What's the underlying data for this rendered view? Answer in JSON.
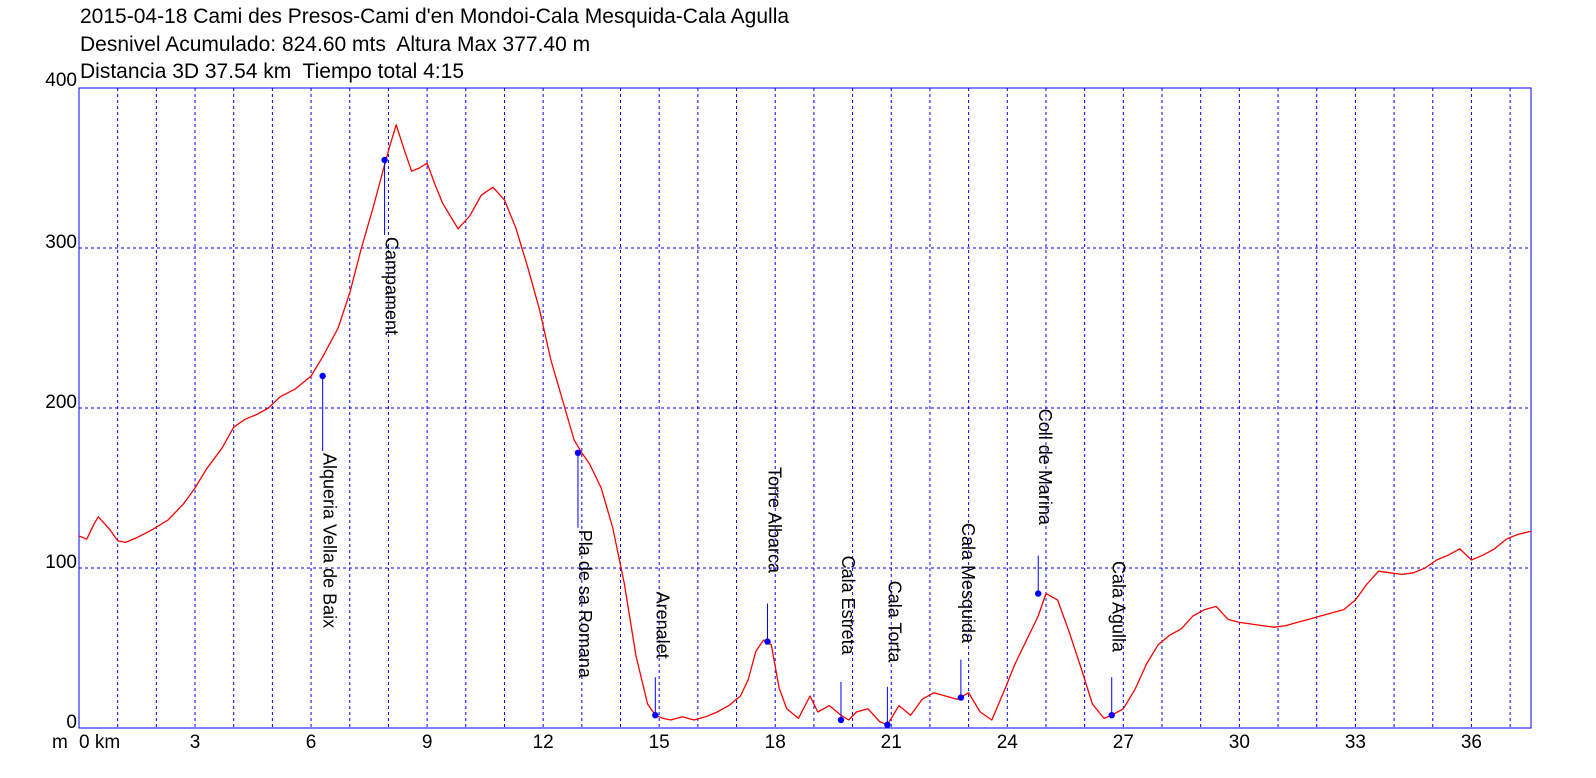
{
  "header": {
    "title": "2015-04-18 Cami des Presos-Cami d'en Mondoi-Cala Mesquida-Cala Agulla",
    "stats": "Desnivel Acumulado: 824.60 mts  Altura Max 377.40 m",
    "stats2": "Distancia 3D 37.54 km  Tiempo total 4:15"
  },
  "chart_data": {
    "type": "area",
    "title": "2015-04-18 Cami des Presos-Cami d'en Mondoi-Cala Mesquida-Cala Agulla",
    "xlabel": "km",
    "ylabel": "m",
    "x_unit_label": "0 km",
    "xlim": [
      0,
      37.54
    ],
    "ylim": [
      0,
      400
    ],
    "x_ticks": [
      0,
      3,
      6,
      9,
      12,
      15,
      18,
      21,
      24,
      27,
      30,
      33,
      36
    ],
    "y_ticks": [
      0,
      100,
      200,
      300,
      400
    ],
    "grid": true,
    "line_color": "#ff0000",
    "grid_color": "#0000ff",
    "marker_color": "#0000ff",
    "series": [
      {
        "x": [
          0,
          0.2,
          0.4,
          0.5,
          0.8,
          1.0,
          1.2,
          1.5,
          1.9,
          2.3,
          2.7,
          3.0,
          3.3,
          3.7,
          4.0,
          4.3,
          4.6,
          4.9,
          5.2,
          5.6,
          6.0,
          6.3,
          6.7,
          7.0,
          7.3,
          7.6,
          7.9,
          8.05,
          8.2,
          8.4,
          8.6,
          8.8,
          9.0,
          9.2,
          9.4,
          9.6,
          9.8,
          10.1,
          10.4,
          10.7,
          11.0,
          11.3,
          11.6,
          11.9,
          12.2,
          12.5,
          12.8,
          13.0,
          13.2,
          13.5,
          13.8,
          14.1,
          14.4,
          14.7,
          14.9,
          15.1,
          15.3,
          15.6,
          15.9,
          16.2,
          16.5,
          16.8,
          17.1,
          17.3,
          17.5,
          17.7,
          17.9,
          18.1,
          18.3,
          18.6,
          18.9,
          19.1,
          19.4,
          19.7,
          19.9,
          20.1,
          20.4,
          20.7,
          20.9,
          21.2,
          21.5,
          21.8,
          22.1,
          22.4,
          22.7,
          23.0,
          23.3,
          23.6,
          23.9,
          24.2,
          24.5,
          24.8,
          25.0,
          25.3,
          25.6,
          25.9,
          26.2,
          26.5,
          26.7,
          27.0,
          27.3,
          27.6,
          27.9,
          28.2,
          28.5,
          28.8,
          29.1,
          29.4,
          29.7,
          30.0,
          30.3,
          30.6,
          30.9,
          31.2,
          31.5,
          31.8,
          32.1,
          32.4,
          32.7,
          33.0,
          33.3,
          33.6,
          33.9,
          34.2,
          34.5,
          34.8,
          35.1,
          35.4,
          35.7,
          36.0,
          36.3,
          36.6,
          36.9,
          37.2,
          37.54
        ],
        "y": [
          120,
          118,
          128,
          132,
          124,
          117,
          116,
          119,
          124,
          130,
          140,
          150,
          162,
          175,
          188,
          193,
          196,
          200,
          207,
          212,
          220,
          232,
          250,
          272,
          300,
          325,
          352,
          365,
          377,
          362,
          348,
          350,
          353,
          340,
          328,
          320,
          312,
          320,
          333,
          338,
          330,
          312,
          288,
          262,
          230,
          205,
          180,
          172,
          165,
          150,
          125,
          90,
          45,
          15,
          8,
          6,
          5,
          7,
          5,
          7,
          10,
          14,
          20,
          30,
          48,
          55,
          52,
          25,
          12,
          6,
          20,
          10,
          14,
          8,
          5,
          10,
          12,
          4,
          2,
          14,
          8,
          18,
          22,
          20,
          18,
          22,
          10,
          5,
          22,
          40,
          55,
          70,
          84,
          80,
          60,
          38,
          15,
          6,
          8,
          12,
          24,
          40,
          52,
          58,
          62,
          70,
          74,
          76,
          68,
          66,
          65,
          64,
          63,
          64,
          66,
          68,
          70,
          72,
          74,
          80,
          90,
          98,
          97,
          96,
          97,
          100,
          105,
          108,
          112,
          105,
          108,
          112,
          118,
          121,
          123
        ]
      }
    ],
    "waypoints": [
      {
        "name": "Alqueria Vella de Baix",
        "x": 6.3,
        "y": 220
      },
      {
        "name": "Campament",
        "x": 7.9,
        "y": 355
      },
      {
        "name": "Pla de sa Romana",
        "x": 12.9,
        "y": 172
      },
      {
        "name": "Arenalet",
        "x": 14.9,
        "y": 8
      },
      {
        "name": "Torre Albarca",
        "x": 17.8,
        "y": 54
      },
      {
        "name": "Cala Estreta",
        "x": 19.7,
        "y": 5
      },
      {
        "name": "Cala Torta",
        "x": 20.9,
        "y": 2
      },
      {
        "name": "Cala Mesquida",
        "x": 22.8,
        "y": 19
      },
      {
        "name": "Coll de Marina",
        "x": 24.8,
        "y": 84
      },
      {
        "name": "Cala Agulla",
        "x": 26.7,
        "y": 8
      }
    ]
  }
}
